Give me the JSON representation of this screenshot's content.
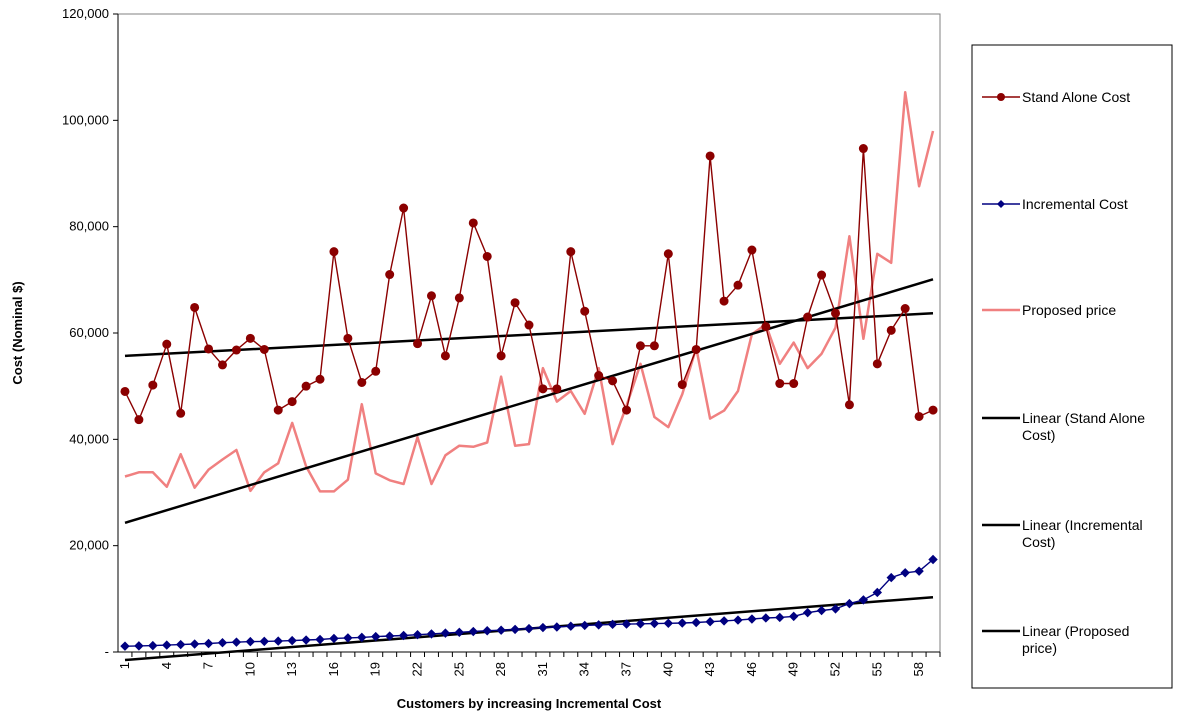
{
  "chart_data": {
    "type": "line",
    "title": "",
    "xlabel": "Customers by increasing Incremental Cost",
    "ylabel": "Cost (Nominal $)",
    "ylim": [
      0,
      120000
    ],
    "xlim": [
      1,
      59
    ],
    "y_tick_labels": [
      "-",
      "20,000",
      "40,000",
      "60,000",
      "80,000",
      "100,000",
      "120,000"
    ],
    "x_tick_labels": [
      "1",
      "4",
      "7",
      "10",
      "13",
      "16",
      "19",
      "22",
      "25",
      "28",
      "31",
      "34",
      "37",
      "40",
      "43",
      "46",
      "49",
      "52",
      "55",
      "58"
    ],
    "grid": false,
    "legend_position": "right",
    "x": [
      1,
      2,
      3,
      4,
      5,
      6,
      7,
      8,
      9,
      10,
      11,
      12,
      13,
      14,
      15,
      16,
      17,
      18,
      19,
      20,
      21,
      22,
      23,
      24,
      25,
      26,
      27,
      28,
      29,
      30,
      31,
      32,
      33,
      34,
      35,
      36,
      37,
      38,
      39,
      40,
      41,
      42,
      43,
      44,
      45,
      46,
      47,
      48,
      49,
      50,
      51,
      52,
      53,
      54,
      55,
      56,
      57,
      58,
      59
    ],
    "series": [
      {
        "name": "Stand Alone Cost",
        "color": "#8b0000",
        "marker": "circle",
        "values": [
          49000,
          43700,
          50200,
          57900,
          44900,
          64800,
          57000,
          54000,
          56800,
          59000,
          56900,
          45500,
          47100,
          50000,
          51300,
          75300,
          59000,
          50700,
          52800,
          71000,
          83500,
          58000,
          67000,
          55700,
          66600,
          80700,
          74400,
          55700,
          65700,
          61500,
          49500,
          49500,
          75300,
          64100,
          52000,
          51000,
          45500,
          57600,
          57600,
          74900,
          50300,
          56900,
          93300,
          66000,
          69000,
          75600,
          61200,
          50500,
          50500,
          63000,
          70900,
          63700,
          46500,
          94700,
          54200,
          60500,
          64600,
          44300,
          45500
        ]
      },
      {
        "name": "Incremental Cost",
        "color": "#000080",
        "marker": "diamond",
        "values": [
          1100,
          1150,
          1200,
          1300,
          1400,
          1500,
          1600,
          1750,
          1850,
          1950,
          2000,
          2050,
          2150,
          2250,
          2350,
          2550,
          2650,
          2750,
          2900,
          3000,
          3100,
          3250,
          3400,
          3550,
          3700,
          3850,
          4000,
          4100,
          4250,
          4400,
          4600,
          4700,
          4850,
          5000,
          5100,
          5200,
          5250,
          5300,
          5350,
          5400,
          5450,
          5550,
          5700,
          5850,
          6000,
          6200,
          6400,
          6500,
          6700,
          7400,
          7800,
          8100,
          9100,
          9800,
          11200,
          14000,
          14900,
          15200,
          17400
        ]
      },
      {
        "name": "Proposed price",
        "color": "#f08080",
        "marker": "none",
        "values": [
          33000,
          33800,
          33800,
          31100,
          37200,
          30900,
          34300,
          36200,
          38000,
          30300,
          33800,
          35500,
          43100,
          34900,
          30200,
          30200,
          32400,
          46600,
          33600,
          32300,
          31600,
          40400,
          31600,
          37000,
          38800,
          38600,
          39400,
          51800,
          38800,
          39100,
          53400,
          47100,
          49100,
          44800,
          53400,
          39100,
          46300,
          54200,
          44200,
          42300,
          48500,
          57200,
          43900,
          45400,
          49100,
          59800,
          61600,
          54200,
          58200,
          53400,
          56100,
          61000,
          78200,
          58900,
          74900,
          73200,
          105300,
          87600,
          98000
        ]
      },
      {
        "name": "Linear (Stand Alone Cost)",
        "color": "#000000",
        "marker": "none",
        "values": [
          55700,
          63700
        ],
        "x": [
          1,
          59
        ]
      },
      {
        "name": "Linear (Incremental Cost)",
        "color": "#000000",
        "marker": "none",
        "values": [
          -1500,
          10300
        ],
        "x": [
          1,
          59
        ]
      },
      {
        "name": "Linear (Proposed price)",
        "color": "#000000",
        "marker": "none",
        "values": [
          24300,
          70100
        ],
        "x": [
          1,
          59
        ]
      }
    ],
    "legend_entries": [
      [
        "Stand Alone Cost"
      ],
      [
        "Incremental Cost"
      ],
      [
        "Proposed price"
      ],
      [
        "Linear (Stand Alone",
        "Cost)"
      ],
      [
        "Linear (Incremental",
        "Cost)"
      ],
      [
        "Linear (Proposed",
        "price)"
      ]
    ]
  }
}
